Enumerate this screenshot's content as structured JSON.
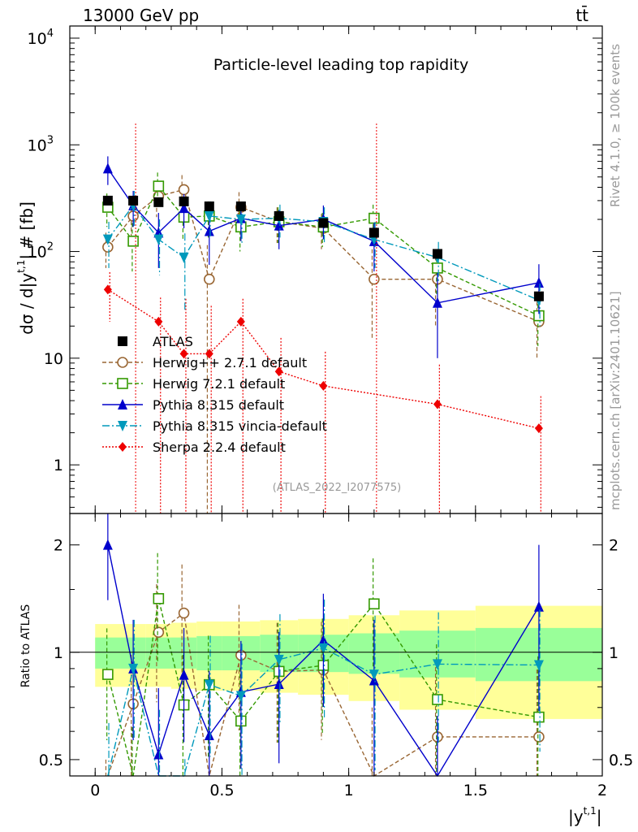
{
  "header": {
    "energy": "13000 GeV pp",
    "process": "tt̄"
  },
  "side_labels": {
    "rivet": "Rivet 4.1.0, ≥ 100k events",
    "mcplots": "mcplots.cern.ch [arXiv:2401.10621]"
  },
  "chart_data": {
    "type": "line",
    "title": "Particle-level leading top rapidity",
    "analysis_id": "(ATLAS_2022_I2077575)",
    "xlabel": "|y^{t,1}|",
    "ylabel": "dσ / d|y^{t,1}| # [fb]",
    "ratio_ylabel": "Ratio to ATLAS",
    "xlim": [
      -0.1,
      2.0
    ],
    "ylim": [
      0.35,
      13000
    ],
    "ratio_ylim": [
      0.45,
      2.45
    ],
    "x_ticks": [
      "0",
      "0.5",
      "1",
      "1.5",
      "2"
    ],
    "y_ticks": [
      "1",
      "10",
      "10^2",
      "10^3",
      "10^4"
    ],
    "ratio_ticks": [
      "0.5",
      "1",
      "2"
    ],
    "x": [
      0.05,
      0.15,
      0.25,
      0.35,
      0.45,
      0.575,
      0.725,
      0.9,
      1.1,
      1.35,
      1.75
    ],
    "bin_edges": [
      0,
      0.1,
      0.2,
      0.3,
      0.4,
      0.5,
      0.65,
      0.8,
      1.0,
      1.2,
      1.5,
      2.0
    ],
    "ratio_band": {
      "green_rel": [
        0.1,
        0.1,
        0.1,
        0.1,
        0.11,
        0.11,
        0.12,
        0.12,
        0.13,
        0.15,
        0.17
      ],
      "yellow_rel": [
        0.2,
        0.2,
        0.2,
        0.21,
        0.22,
        0.22,
        0.23,
        0.24,
        0.27,
        0.31,
        0.35
      ]
    },
    "data": {
      "name": "ATLAS",
      "color": "#000000",
      "values": [
        300,
        300,
        290,
        295,
        265,
        265,
        215,
        185,
        150,
        95,
        38
      ]
    },
    "series": [
      {
        "name": "Herwig++ 2.7.1 default",
        "color": "#996633",
        "marker": "circle-open",
        "dash": "5,3",
        "values": [
          110,
          215,
          330,
          380,
          55,
          260,
          190,
          165,
          55,
          55,
          22
        ],
        "err_up": [
          40,
          80,
          120,
          140,
          60,
          100,
          70,
          60,
          50,
          35,
          12
        ],
        "err_dn": [
          40,
          80,
          120,
          140,
          55,
          100,
          70,
          60,
          40,
          35,
          12
        ]
      },
      {
        "name": "Herwig 7.2.1 default",
        "color": "#339900",
        "marker": "square-open",
        "dash": "5,3",
        "values": [
          260,
          125,
          410,
          210,
          215,
          170,
          190,
          170,
          205,
          70,
          25
        ],
        "err_up": [
          90,
          60,
          140,
          80,
          80,
          70,
          70,
          60,
          70,
          30,
          12
        ],
        "err_dn": [
          90,
          60,
          140,
          80,
          80,
          70,
          70,
          60,
          70,
          30,
          12
        ]
      },
      {
        "name": "Pythia 8.315 default",
        "color": "#0000cc",
        "marker": "triangle-up",
        "dash": "",
        "values": [
          600,
          270,
          150,
          255,
          155,
          205,
          175,
          200,
          125,
          33,
          51
        ],
        "err_up": [
          180,
          100,
          80,
          90,
          80,
          80,
          70,
          70,
          60,
          30,
          25
        ],
        "err_dn": [
          180,
          100,
          80,
          90,
          80,
          80,
          70,
          70,
          60,
          23,
          25
        ]
      },
      {
        "name": "Pythia 8.315 vincia-default",
        "color": "#0099bb",
        "marker": "triangle-down",
        "dash": "9,3,2,3",
        "values": [
          130,
          270,
          130,
          88,
          215,
          200,
          205,
          190,
          130,
          88,
          35
        ],
        "err_up": [
          60,
          100,
          70,
          60,
          80,
          80,
          70,
          70,
          60,
          35,
          15
        ],
        "err_dn": [
          60,
          100,
          70,
          60,
          80,
          80,
          70,
          70,
          60,
          35,
          15
        ]
      },
      {
        "name": "Sherpa 2.2.4 default",
        "color": "#ee0000",
        "marker": "diamond",
        "dash": "2,2",
        "values": [
          44,
          null,
          22,
          11,
          11,
          22,
          7.5,
          5.5,
          null,
          3.7,
          2.2
        ],
        "err_up": [
          20,
          0,
          15,
          25,
          20,
          14,
          8,
          6,
          0,
          5,
          2.2
        ],
        "err_dn": [
          22,
          0,
          21.9,
          10.9,
          10.9,
          21.9,
          7.4,
          5.4,
          0,
          3.6,
          2.1
        ]
      }
    ]
  }
}
